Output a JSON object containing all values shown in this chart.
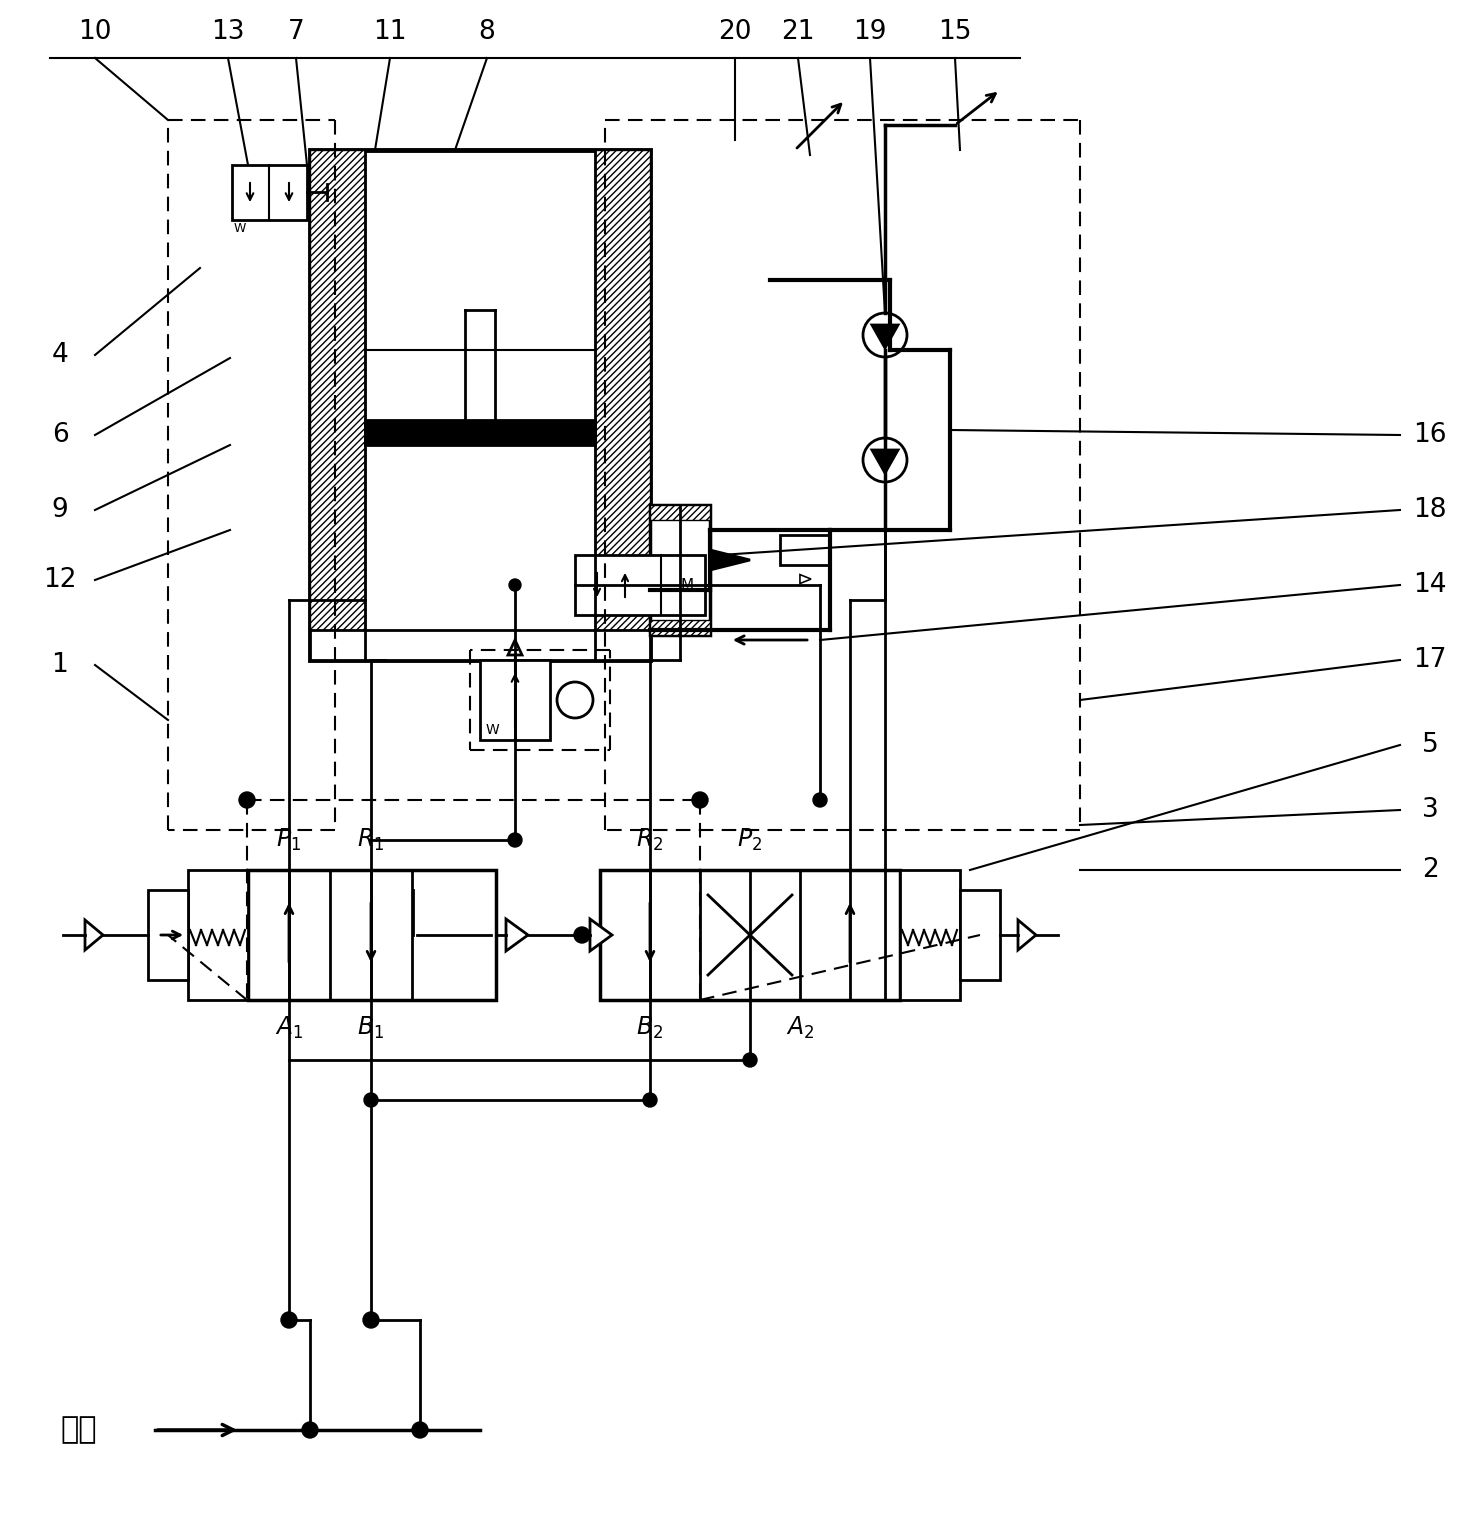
{
  "background": "#ffffff",
  "top_labels": [
    [
      "10",
      95
    ],
    [
      "13",
      228
    ],
    [
      "7",
      296
    ],
    [
      "11",
      390
    ],
    [
      "8",
      487
    ],
    [
      "20",
      735
    ],
    [
      "21",
      798
    ],
    [
      "19",
      870
    ],
    [
      "15",
      955
    ]
  ],
  "left_labels": [
    [
      "4",
      355
    ],
    [
      "6",
      435
    ],
    [
      "9",
      510
    ],
    [
      "12",
      580
    ],
    [
      "1",
      665
    ]
  ],
  "right_labels": [
    [
      "16",
      435
    ],
    [
      "18",
      510
    ],
    [
      "14",
      585
    ],
    [
      "17",
      660
    ],
    [
      "5",
      745
    ],
    [
      "3",
      810
    ],
    [
      "2",
      870
    ]
  ],
  "gas_source": "气源"
}
